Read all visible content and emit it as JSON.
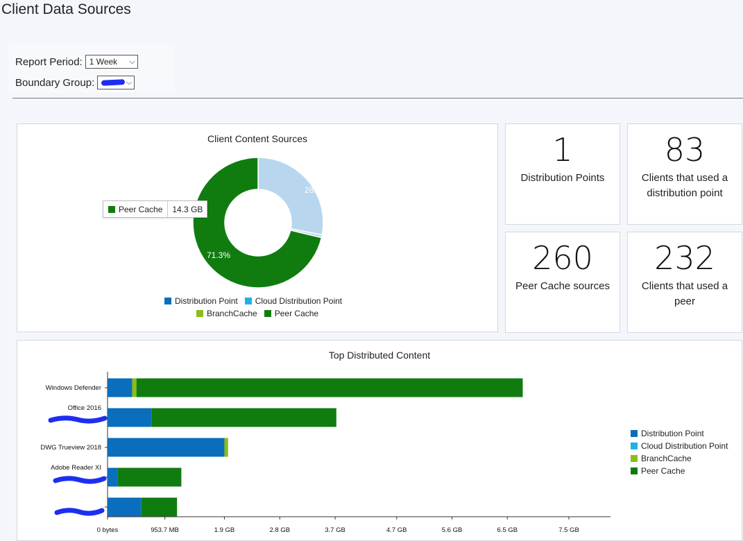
{
  "page": {
    "title": "Client Data Sources"
  },
  "filters": {
    "report_period_label": "Report Period:",
    "report_period_value": "1 Week",
    "boundary_group_label": "Boundary Group:"
  },
  "colors": {
    "distribution_point": "#0a6ebd",
    "cloud_distribution_point": "#1fb1e6",
    "branch_cache": "#8cbd18",
    "peer_cache": "#107c10",
    "donut_light": "#b8d6ee"
  },
  "donut": {
    "title": "Client Content Sources",
    "label_light": "28.0%",
    "label_dark": "71.3%",
    "tooltip_series": "Peer Cache",
    "tooltip_value": "14.3 GB"
  },
  "legend": {
    "distribution_point": "Distribution Point",
    "cloud_distribution_point": "Cloud Distribution Point",
    "branch_cache": "BranchCache",
    "peer_cache": "Peer Cache"
  },
  "kpis": {
    "distribution_points": {
      "value": "1",
      "label": "Distribution Points"
    },
    "clients_dp": {
      "value": "83",
      "label": "Clients that used a distribution point"
    },
    "peer_cache_sources": {
      "value": "260",
      "label": "Peer Cache sources"
    },
    "clients_peer": {
      "value": "232",
      "label": "Clients that used a peer"
    }
  },
  "chart_data": [
    {
      "type": "pie",
      "title": "Client Content Sources",
      "labels": [
        "Distribution Point",
        "Cloud Distribution Point",
        "BranchCache",
        "Peer Cache"
      ],
      "values": [
        28.0,
        0,
        0.7,
        71.3
      ],
      "unit": "%"
    },
    {
      "type": "bar",
      "orientation": "horizontal",
      "stacked": true,
      "title": "Top Distributed Content",
      "categories": [
        "Windows Defender",
        "Office 2016",
        "DWG Trueview 2018",
        "Adobe Reader XI",
        ""
      ],
      "series": [
        {
          "name": "Distribution Point",
          "values": [
            0.4,
            0.72,
            1.9,
            0.16,
            0.55
          ]
        },
        {
          "name": "Cloud Distribution Point",
          "values": [
            0,
            0,
            0,
            0,
            0
          ]
        },
        {
          "name": "BranchCache",
          "values": [
            0.07,
            0,
            0.06,
            0,
            0
          ]
        },
        {
          "name": "Peer Cache",
          "values": [
            6.28,
            3.0,
            0,
            1.04,
            0.58
          ]
        }
      ],
      "unit": "GB",
      "xlim": [
        0,
        7.5
      ],
      "x_ticks": [
        0,
        0.9313,
        1.9,
        2.8,
        3.7,
        4.7,
        5.6,
        6.5,
        7.5
      ],
      "x_tick_labels": [
        "0 bytes",
        "953.7 MB",
        "1.9 GB",
        "2.8 GB",
        "3.7 GB",
        "4.7 GB",
        "5.6 GB",
        "6.5 GB",
        "7.5 GB"
      ],
      "legend_position": "right"
    }
  ]
}
